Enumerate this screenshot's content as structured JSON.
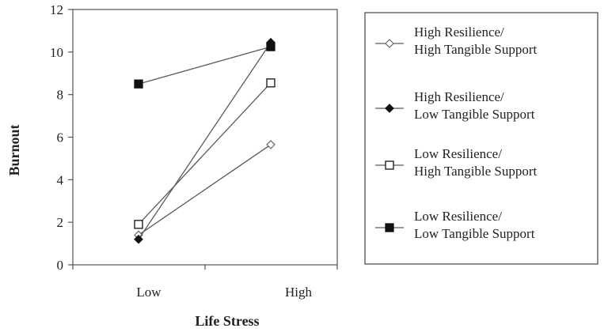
{
  "chart_data": {
    "type": "line",
    "title": "",
    "xlabel": "Life Stress",
    "ylabel": "Burnout",
    "categories": [
      "Low",
      "High"
    ],
    "ylim": [
      0,
      12
    ],
    "yticks": [
      "0",
      "2",
      "4",
      "6",
      "8",
      "10",
      "12"
    ],
    "grid": false,
    "legend_position": "right",
    "line_color": "#5a5a5a",
    "series": [
      {
        "name_lines": [
          "High Resilience/",
          "High Tangible Support"
        ],
        "marker": "open-diamond",
        "values": [
          1.4,
          5.65
        ]
      },
      {
        "name_lines": [
          "High Resilience/",
          "Low Tangible Support"
        ],
        "marker": "filled-diamond",
        "values": [
          1.2,
          10.45
        ]
      },
      {
        "name_lines": [
          "Low Resilience/",
          "High Tangible Support"
        ],
        "marker": "open-square",
        "values": [
          1.9,
          8.55
        ]
      },
      {
        "name_lines": [
          "Low Resilience/",
          "Low Tangible Support"
        ],
        "marker": "filled-square",
        "values": [
          8.5,
          10.25
        ]
      }
    ]
  }
}
